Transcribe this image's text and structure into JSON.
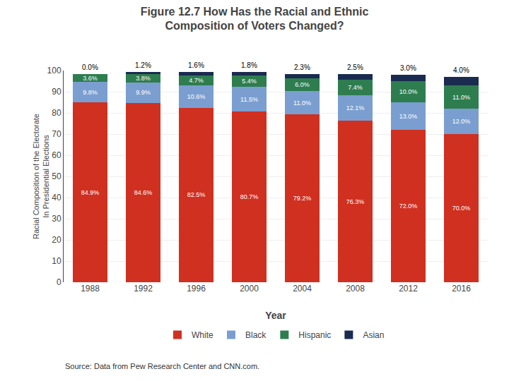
{
  "chart_data": {
    "type": "bar",
    "title": "Figure 12.7 How Has the Racial and Ethnic\nComposition of Voters Changed?",
    "xlabel": "Year",
    "ylabel": "Racial Composition of the Electorate\nIn Presidential Elections",
    "categories": [
      "1988",
      "1992",
      "1996",
      "2000",
      "2004",
      "2008",
      "2012",
      "2016"
    ],
    "series": [
      {
        "name": "White",
        "color": "#D03020",
        "values": [
          84.9,
          84.6,
          82.5,
          80.7,
          79.2,
          76.3,
          72.0,
          70.0
        ],
        "value_labels": [
          "84.9%",
          "84.6%",
          "82.5%",
          "80.7%",
          "79.2%",
          "76.3%",
          "72.0%",
          "70.0%"
        ]
      },
      {
        "name": "Black",
        "color": "#7B9ED0",
        "values": [
          9.8,
          9.9,
          10.6,
          11.5,
          11.0,
          12.1,
          13.0,
          12.0
        ],
        "value_labels": [
          "9.8%",
          "9.9%",
          "10.6%",
          "11.5%",
          "11.0%",
          "12.1%",
          "13.0%",
          "12.0%"
        ]
      },
      {
        "name": "Hispanic",
        "color": "#2E7D4F",
        "values": [
          3.6,
          3.8,
          4.7,
          5.4,
          6.0,
          7.4,
          10.0,
          11.0
        ],
        "value_labels": [
          "3.6%",
          "3.8%",
          "4.7%",
          "5.4%",
          "6.0%",
          "7.4%",
          "10.0%",
          "11.0%"
        ]
      },
      {
        "name": "Asian",
        "color": "#1A2B50",
        "values": [
          0.0,
          1.2,
          1.6,
          1.8,
          2.3,
          2.5,
          3.0,
          4.0
        ],
        "value_labels": [
          "0.0%",
          "1.2%",
          "1.6%",
          "1.8%",
          "2.3%",
          "2.5%",
          "3.0%",
          "4.0%"
        ]
      }
    ],
    "stacked": true,
    "data_labels": true,
    "ylim": [
      0,
      100
    ],
    "yticks": [
      0,
      10,
      20,
      30,
      40,
      50,
      60,
      70,
      80,
      90,
      100
    ],
    "grid": true,
    "legend": "bottom",
    "annotations": [
      "Source: Data from Pew Research Center and CNN.com."
    ]
  }
}
